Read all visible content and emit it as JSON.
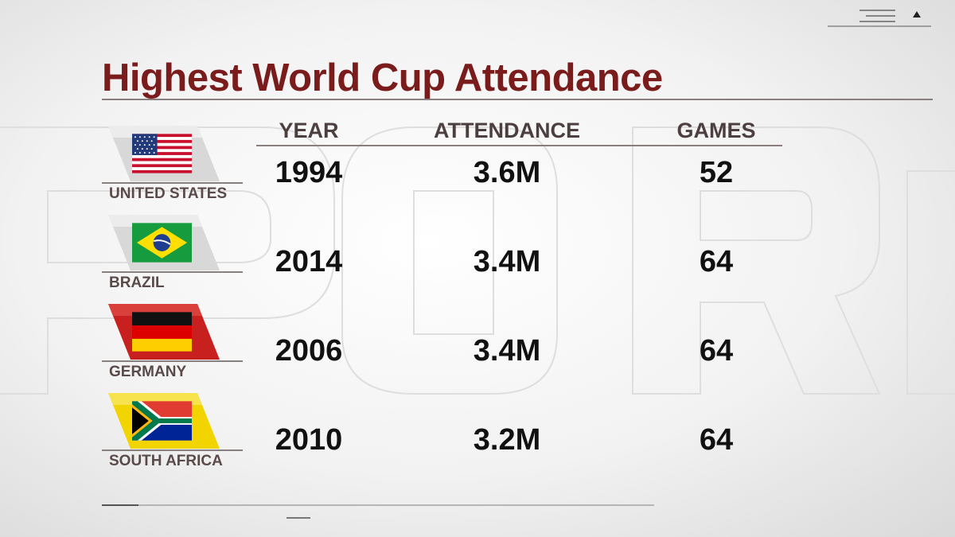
{
  "chart_data": {
    "type": "table",
    "title": "Highest World Cup Attendance",
    "columns": [
      "YEAR",
      "ATTENDANCE",
      "GAMES"
    ],
    "rows": [
      {
        "country": "UNITED STATES",
        "flag": "usa-flag",
        "year": "1994",
        "attendance": "3.6M",
        "games": "52"
      },
      {
        "country": "BRAZIL",
        "flag": "brazil-flag",
        "year": "2014",
        "attendance": "3.4M",
        "games": "64"
      },
      {
        "country": "GERMANY",
        "flag": "germany-flag",
        "year": "2006",
        "attendance": "3.4M",
        "games": "64"
      },
      {
        "country": "SOUTH AFRICA",
        "flag": "south-africa-flag",
        "year": "2010",
        "attendance": "3.2M",
        "games": "64"
      }
    ]
  },
  "colors": {
    "title": "#7a1c1c",
    "header": "#4b3f3f",
    "card_usa": "#d8d8d8",
    "card_brazil": "#d8d8d8",
    "card_germany": "#c8201f",
    "card_south_africa": "#f2d400"
  }
}
